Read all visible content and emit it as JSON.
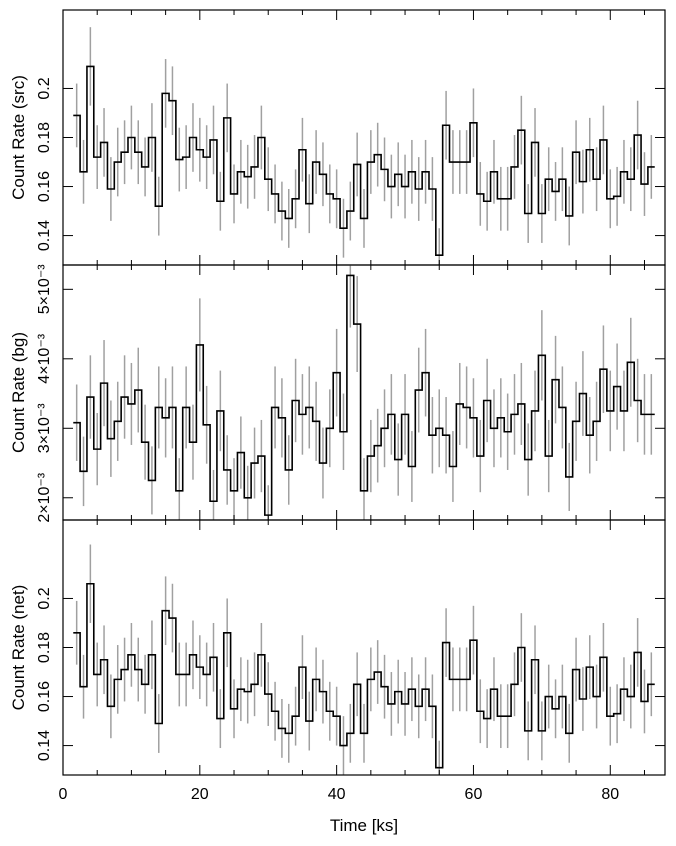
{
  "chart_data": [
    {
      "type": "line",
      "ylabel": "Count Rate (src)",
      "xlim": [
        0,
        88
      ],
      "ylim": [
        0.128,
        0.232
      ],
      "yticks": [
        {
          "v": 0.14,
          "label": "0.14"
        },
        {
          "v": 0.16,
          "label": "0.16"
        },
        {
          "v": 0.18,
          "label": "0.18"
        },
        {
          "v": 0.2,
          "label": "0.2"
        }
      ],
      "series": [
        {
          "x": [
            2,
            3,
            4,
            5,
            6,
            7,
            8,
            9,
            10,
            11,
            12,
            13,
            14,
            15,
            16,
            17,
            18,
            19,
            20,
            21,
            22,
            23,
            24,
            25,
            26,
            27,
            28,
            29,
            30,
            31,
            32,
            33,
            34,
            35,
            36,
            37,
            38,
            39,
            40,
            41,
            42,
            43,
            44,
            45,
            46,
            47,
            48,
            49,
            50,
            51,
            52,
            53,
            54,
            55,
            56,
            57,
            58,
            59,
            60,
            61,
            62,
            63,
            64,
            65,
            66,
            67,
            68,
            69,
            70,
            71,
            72,
            73,
            74,
            75,
            76,
            77,
            78,
            79,
            80,
            81,
            82,
            83,
            84,
            85,
            86
          ],
          "y": [
            0.189,
            0.166,
            0.209,
            0.172,
            0.178,
            0.159,
            0.17,
            0.174,
            0.18,
            0.174,
            0.168,
            0.18,
            0.152,
            0.198,
            0.195,
            0.171,
            0.172,
            0.18,
            0.175,
            0.172,
            0.179,
            0.154,
            0.188,
            0.157,
            0.166,
            0.164,
            0.168,
            0.18,
            0.163,
            0.157,
            0.15,
            0.147,
            0.155,
            0.175,
            0.153,
            0.17,
            0.165,
            0.157,
            0.155,
            0.143,
            0.15,
            0.169,
            0.147,
            0.17,
            0.173,
            0.167,
            0.16,
            0.165,
            0.16,
            0.166,
            0.159,
            0.166,
            0.159,
            0.132,
            0.185,
            0.17,
            0.17,
            0.17,
            0.186,
            0.157,
            0.154,
            0.166,
            0.155,
            0.155,
            0.168,
            0.183,
            0.149,
            0.178,
            0.149,
            0.163,
            0.158,
            0.163,
            0.148,
            0.174,
            0.162,
            0.175,
            0.163,
            0.179,
            0.155,
            0.156,
            0.166,
            0.163,
            0.181,
            0.161,
            0.168
          ],
          "err": [
            0.013,
            0.013,
            0.016,
            0.013,
            0.014,
            0.013,
            0.014,
            0.013,
            0.013,
            0.013,
            0.012,
            0.014,
            0.012,
            0.014,
            0.014,
            0.013,
            0.013,
            0.014,
            0.013,
            0.013,
            0.014,
            0.012,
            0.014,
            0.012,
            0.013,
            0.013,
            0.013,
            0.013,
            0.013,
            0.012,
            0.012,
            0.012,
            0.012,
            0.013,
            0.012,
            0.013,
            0.013,
            0.012,
            0.012,
            0.012,
            0.012,
            0.013,
            0.012,
            0.013,
            0.013,
            0.013,
            0.013,
            0.013,
            0.013,
            0.013,
            0.013,
            0.013,
            0.013,
            0.011,
            0.014,
            0.013,
            0.013,
            0.013,
            0.014,
            0.013,
            0.012,
            0.013,
            0.013,
            0.013,
            0.013,
            0.014,
            0.012,
            0.014,
            0.012,
            0.013,
            0.012,
            0.013,
            0.012,
            0.013,
            0.013,
            0.013,
            0.013,
            0.014,
            0.012,
            0.012,
            0.013,
            0.013,
            0.014,
            0.013,
            0.013
          ]
        }
      ]
    },
    {
      "type": "line",
      "ylabel": "Count Rate (bg)",
      "xlim": [
        0,
        88
      ],
      "ylim": [
        0.00168,
        0.00535
      ],
      "yticks": [
        {
          "v": 0.002,
          "label": "2×10⁻³"
        },
        {
          "v": 0.003,
          "label": "3×10⁻³"
        },
        {
          "v": 0.004,
          "label": "4×10⁻³"
        },
        {
          "v": 0.005,
          "label": "5×10⁻³"
        }
      ],
      "series": [
        {
          "x": [
            2,
            3,
            4,
            5,
            6,
            7,
            8,
            9,
            10,
            11,
            12,
            13,
            14,
            15,
            16,
            17,
            18,
            19,
            20,
            21,
            22,
            23,
            24,
            25,
            26,
            27,
            28,
            29,
            30,
            31,
            32,
            33,
            34,
            35,
            36,
            37,
            38,
            39,
            40,
            41,
            42,
            43,
            44,
            45,
            46,
            47,
            48,
            49,
            50,
            51,
            52,
            53,
            54,
            55,
            56,
            57,
            58,
            59,
            60,
            61,
            62,
            63,
            64,
            65,
            66,
            67,
            68,
            69,
            70,
            71,
            72,
            73,
            74,
            75,
            76,
            77,
            78,
            79,
            80,
            81,
            82,
            83,
            84,
            85,
            86
          ],
          "y": [
            0.00308,
            0.00238,
            0.00345,
            0.0027,
            0.00365,
            0.00285,
            0.0031,
            0.00345,
            0.00335,
            0.00355,
            0.0028,
            0.00225,
            0.0033,
            0.00315,
            0.0033,
            0.0021,
            0.0033,
            0.0028,
            0.0042,
            0.00305,
            0.00195,
            0.00325,
            0.0024,
            0.0021,
            0.00265,
            0.002,
            0.0025,
            0.0026,
            0.00175,
            0.0033,
            0.00315,
            0.0024,
            0.0034,
            0.0032,
            0.0033,
            0.0031,
            0.0025,
            0.003,
            0.0038,
            0.00295,
            0.0052,
            0.0045,
            0.0021,
            0.0026,
            0.00275,
            0.003,
            0.0032,
            0.00255,
            0.0032,
            0.00245,
            0.00355,
            0.0038,
            0.0029,
            0.003,
            0.0029,
            0.00245,
            0.00335,
            0.0033,
            0.00315,
            0.0026,
            0.0034,
            0.003,
            0.00315,
            0.00295,
            0.0032,
            0.00335,
            0.00255,
            0.00325,
            0.00405,
            0.0026,
            0.0037,
            0.0033,
            0.0023,
            0.0031,
            0.0035,
            0.0029,
            0.0031,
            0.00385,
            0.00325,
            0.0036,
            0.00325,
            0.00395,
            0.0034,
            0.0032,
            0.0032
          ],
          "err": [
            0.00055,
            0.0005,
            0.0006,
            0.00052,
            0.00062,
            0.00055,
            0.00057,
            0.0006,
            0.00059,
            0.00061,
            0.00054,
            0.00049,
            0.00059,
            0.00057,
            0.00059,
            0.00047,
            0.00059,
            0.00054,
            0.00067,
            0.00056,
            0.00045,
            0.00058,
            0.0005,
            0.00047,
            0.00052,
            0.00046,
            0.00051,
            0.00052,
            0.00043,
            0.00059,
            0.00057,
            0.0005,
            0.0006,
            0.00058,
            0.00059,
            0.00057,
            0.00051,
            0.00056,
            0.00063,
            0.00055,
            0.00075,
            0.00069,
            0.00047,
            0.00052,
            0.00053,
            0.00056,
            0.00058,
            0.00052,
            0.00058,
            0.00051,
            0.00061,
            0.00063,
            0.00055,
            0.00056,
            0.00055,
            0.00051,
            0.00059,
            0.00059,
            0.00057,
            0.00052,
            0.0006,
            0.00056,
            0.00057,
            0.00055,
            0.00058,
            0.00059,
            0.00052,
            0.00058,
            0.00065,
            0.00052,
            0.00063,
            0.00059,
            0.00049,
            0.00057,
            0.00061,
            0.00055,
            0.00057,
            0.00063,
            0.00058,
            0.00062,
            0.00058,
            0.00064,
            0.0006,
            0.00058,
            0.00058
          ]
        }
      ]
    },
    {
      "type": "line",
      "ylabel": "Count Rate (net)",
      "xlabel": "Time [ks]",
      "xlim": [
        0,
        88
      ],
      "ylim": [
        0.128,
        0.232
      ],
      "xticks": [
        {
          "v": 0,
          "label": "0"
        },
        {
          "v": 20,
          "label": "20"
        },
        {
          "v": 40,
          "label": "40"
        },
        {
          "v": 60,
          "label": "60"
        },
        {
          "v": 80,
          "label": "80"
        }
      ],
      "yticks": [
        {
          "v": 0.14,
          "label": "0.14"
        },
        {
          "v": 0.16,
          "label": "0.16"
        },
        {
          "v": 0.18,
          "label": "0.18"
        },
        {
          "v": 0.2,
          "label": "0.2"
        }
      ],
      "series": [
        {
          "x": [
            2,
            3,
            4,
            5,
            6,
            7,
            8,
            9,
            10,
            11,
            12,
            13,
            14,
            15,
            16,
            17,
            18,
            19,
            20,
            21,
            22,
            23,
            24,
            25,
            26,
            27,
            28,
            29,
            30,
            31,
            32,
            33,
            34,
            35,
            36,
            37,
            38,
            39,
            40,
            41,
            42,
            43,
            44,
            45,
            46,
            47,
            48,
            49,
            50,
            51,
            52,
            53,
            54,
            55,
            56,
            57,
            58,
            59,
            60,
            61,
            62,
            63,
            64,
            65,
            66,
            67,
            68,
            69,
            70,
            71,
            72,
            73,
            74,
            75,
            76,
            77,
            78,
            79,
            80,
            81,
            82,
            83,
            84,
            85,
            86
          ],
          "y": [
            0.186,
            0.164,
            0.206,
            0.169,
            0.175,
            0.156,
            0.167,
            0.171,
            0.177,
            0.171,
            0.165,
            0.177,
            0.149,
            0.195,
            0.192,
            0.169,
            0.169,
            0.177,
            0.172,
            0.169,
            0.176,
            0.151,
            0.186,
            0.155,
            0.163,
            0.162,
            0.165,
            0.177,
            0.161,
            0.154,
            0.147,
            0.145,
            0.152,
            0.172,
            0.15,
            0.167,
            0.162,
            0.154,
            0.152,
            0.14,
            0.145,
            0.165,
            0.145,
            0.167,
            0.17,
            0.164,
            0.157,
            0.162,
            0.157,
            0.163,
            0.156,
            0.163,
            0.156,
            0.131,
            0.182,
            0.167,
            0.167,
            0.167,
            0.183,
            0.154,
            0.151,
            0.163,
            0.152,
            0.152,
            0.165,
            0.18,
            0.146,
            0.175,
            0.146,
            0.16,
            0.155,
            0.16,
            0.145,
            0.171,
            0.159,
            0.172,
            0.16,
            0.176,
            0.152,
            0.153,
            0.163,
            0.16,
            0.178,
            0.158,
            0.165
          ],
          "err": [
            0.013,
            0.013,
            0.016,
            0.013,
            0.014,
            0.013,
            0.014,
            0.013,
            0.013,
            0.013,
            0.012,
            0.014,
            0.012,
            0.014,
            0.014,
            0.013,
            0.013,
            0.014,
            0.013,
            0.013,
            0.014,
            0.012,
            0.014,
            0.012,
            0.013,
            0.013,
            0.013,
            0.013,
            0.013,
            0.012,
            0.012,
            0.012,
            0.012,
            0.013,
            0.012,
            0.013,
            0.013,
            0.012,
            0.012,
            0.012,
            0.012,
            0.013,
            0.012,
            0.013,
            0.013,
            0.013,
            0.013,
            0.013,
            0.013,
            0.013,
            0.013,
            0.013,
            0.013,
            0.011,
            0.014,
            0.013,
            0.013,
            0.013,
            0.014,
            0.013,
            0.012,
            0.013,
            0.013,
            0.013,
            0.013,
            0.014,
            0.012,
            0.014,
            0.012,
            0.013,
            0.012,
            0.013,
            0.012,
            0.013,
            0.013,
            0.013,
            0.013,
            0.014,
            0.012,
            0.012,
            0.013,
            0.013,
            0.014,
            0.013,
            0.013
          ]
        }
      ]
    }
  ],
  "colors": {
    "step_line": "#000000",
    "error_bar": "#a0a0a0",
    "axis": "#000000",
    "background": "#ffffff"
  }
}
